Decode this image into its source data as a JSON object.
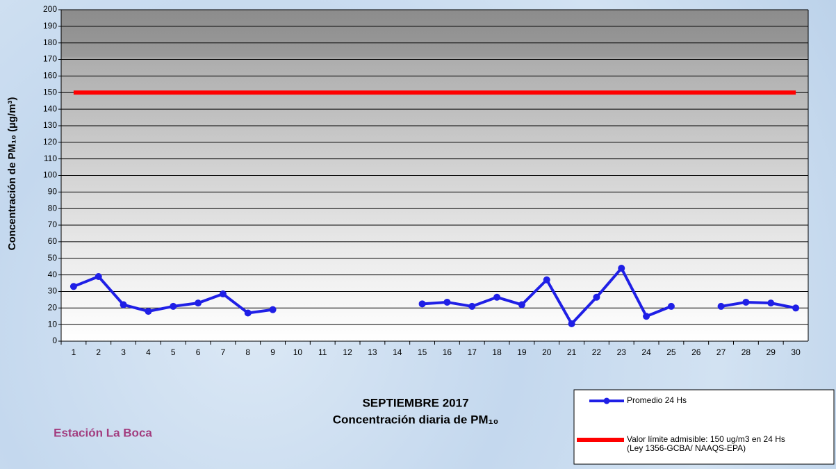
{
  "chart_data": {
    "type": "line",
    "title": [
      "SEPTIEMBRE 2017",
      "Concentración diaria de PM₁₀"
    ],
    "subtitle": "Estación La Boca",
    "y_label": "Concentración de PM₁₀ (µg/m³)",
    "categories": [
      "1",
      "2",
      "3",
      "4",
      "5",
      "6",
      "7",
      "8",
      "9",
      "10",
      "11",
      "12",
      "13",
      "14",
      "15",
      "16",
      "17",
      "18",
      "19",
      "20",
      "21",
      "22",
      "23",
      "24",
      "25",
      "26",
      "27",
      "28",
      "29",
      "30"
    ],
    "series": [
      {
        "name": "Promedio 24 Hs",
        "color": "#1f1fe6",
        "values": [
          33,
          39,
          22,
          18,
          21,
          23,
          28.5,
          17,
          19,
          null,
          null,
          null,
          null,
          null,
          22.5,
          23.5,
          21,
          26.5,
          22,
          37,
          10.5,
          26.5,
          44,
          15,
          21,
          null,
          21,
          23.5,
          23,
          20
        ]
      },
      {
        "name": "Valor límite admisible: 150 ug/m3 en 24 Hs\n(Ley 1356-GCBA/ NAAQS-EPA)",
        "color": "#ff0000",
        "values": [
          150,
          150,
          150,
          150,
          150,
          150,
          150,
          150,
          150,
          150,
          150,
          150,
          150,
          150,
          150,
          150,
          150,
          150,
          150,
          150,
          150,
          150,
          150,
          150,
          150,
          150,
          150,
          150,
          150,
          150
        ]
      }
    ],
    "ylim": [
      0,
      200
    ],
    "yticks": [
      0,
      10,
      20,
      30,
      40,
      50,
      60,
      70,
      80,
      90,
      100,
      110,
      120,
      130,
      140,
      150,
      160,
      170,
      180,
      190,
      200
    ],
    "grid": true
  }
}
